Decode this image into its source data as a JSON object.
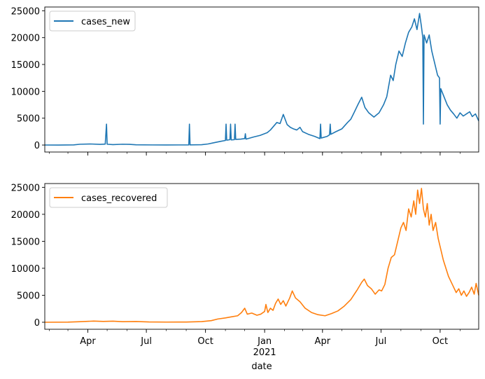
{
  "chart_data": {
    "type": "line",
    "xlabel": "date",
    "x_range": [
      "2020-01-25",
      "2021-11-30"
    ],
    "x_ticks": [
      {
        "date": "2020-04-01",
        "label": "Apr",
        "year": ""
      },
      {
        "date": "2020-07-01",
        "label": "Jul",
        "year": ""
      },
      {
        "date": "2020-10-01",
        "label": "Oct",
        "year": ""
      },
      {
        "date": "2021-01-01",
        "label": "Jan",
        "year": "2021"
      },
      {
        "date": "2021-04-01",
        "label": "Apr",
        "year": ""
      },
      {
        "date": "2021-07-01",
        "label": "Jul",
        "year": ""
      },
      {
        "date": "2021-10-01",
        "label": "Oct",
        "year": ""
      }
    ],
    "y_ticks": [
      0,
      5000,
      10000,
      15000,
      20000,
      25000
    ],
    "ylim": [
      -1300,
      25700
    ],
    "legend_position": "upper-left",
    "series": [
      {
        "name": "cases_new",
        "color": "#1f77b4",
        "points": [
          [
            "2020-01-25",
            4
          ],
          [
            "2020-02-15",
            0
          ],
          [
            "2020-03-10",
            30
          ],
          [
            "2020-03-20",
            150
          ],
          [
            "2020-04-05",
            200
          ],
          [
            "2020-04-20",
            120
          ],
          [
            "2020-04-28",
            180
          ],
          [
            "2020-04-30",
            3900
          ],
          [
            "2020-05-01",
            150
          ],
          [
            "2020-05-10",
            80
          ],
          [
            "2020-05-25",
            150
          ],
          [
            "2020-06-05",
            120
          ],
          [
            "2020-06-15",
            50
          ],
          [
            "2020-07-10",
            20
          ],
          [
            "2020-08-01",
            15
          ],
          [
            "2020-08-20",
            20
          ],
          [
            "2020-09-05",
            20
          ],
          [
            "2020-09-06",
            3900
          ],
          [
            "2020-09-07",
            30
          ],
          [
            "2020-09-25",
            60
          ],
          [
            "2020-10-05",
            200
          ],
          [
            "2020-10-15",
            450
          ],
          [
            "2020-10-25",
            700
          ],
          [
            "2020-11-01",
            850
          ],
          [
            "2020-11-02",
            3900
          ],
          [
            "2020-11-03",
            900
          ],
          [
            "2020-11-08",
            1000
          ],
          [
            "2020-11-09",
            3900
          ],
          [
            "2020-11-10",
            950
          ],
          [
            "2020-11-15",
            1000
          ],
          [
            "2020-11-16",
            3900
          ],
          [
            "2020-11-17",
            1050
          ],
          [
            "2020-11-25",
            1100
          ],
          [
            "2020-12-01",
            1200
          ],
          [
            "2020-12-02",
            2100
          ],
          [
            "2020-12-03",
            1100
          ],
          [
            "2020-12-15",
            1500
          ],
          [
            "2020-12-25",
            1800
          ],
          [
            "2021-01-05",
            2300
          ],
          [
            "2021-01-10",
            2800
          ],
          [
            "2021-01-15",
            3500
          ],
          [
            "2021-01-20",
            4200
          ],
          [
            "2021-01-25",
            4000
          ],
          [
            "2021-01-30",
            5700
          ],
          [
            "2021-02-05",
            3800
          ],
          [
            "2021-02-10",
            3300
          ],
          [
            "2021-02-15",
            3000
          ],
          [
            "2021-02-20",
            2800
          ],
          [
            "2021-02-25",
            3300
          ],
          [
            "2021-03-01",
            2500
          ],
          [
            "2021-03-10",
            2000
          ],
          [
            "2021-03-20",
            1600
          ],
          [
            "2021-03-28",
            1200
          ],
          [
            "2021-03-29",
            3900
          ],
          [
            "2021-03-30",
            1300
          ],
          [
            "2021-04-08",
            1600
          ],
          [
            "2021-04-12",
            1900
          ],
          [
            "2021-04-13",
            3900
          ],
          [
            "2021-04-14",
            2000
          ],
          [
            "2021-04-22",
            2500
          ],
          [
            "2021-05-01",
            3000
          ],
          [
            "2021-05-10",
            4200
          ],
          [
            "2021-05-15",
            4800
          ],
          [
            "2021-05-20",
            6000
          ],
          [
            "2021-05-26",
            7500
          ],
          [
            "2021-06-01",
            8900
          ],
          [
            "2021-06-06",
            7000
          ],
          [
            "2021-06-12",
            6000
          ],
          [
            "2021-06-20",
            5200
          ],
          [
            "2021-06-28",
            6000
          ],
          [
            "2021-07-05",
            7500
          ],
          [
            "2021-07-10",
            9000
          ],
          [
            "2021-07-13",
            11000
          ],
          [
            "2021-07-16",
            13000
          ],
          [
            "2021-07-20",
            12000
          ],
          [
            "2021-07-24",
            15000
          ],
          [
            "2021-07-29",
            17500
          ],
          [
            "2021-08-03",
            16500
          ],
          [
            "2021-08-08",
            19000
          ],
          [
            "2021-08-13",
            21000
          ],
          [
            "2021-08-18",
            22000
          ],
          [
            "2021-08-22",
            23500
          ],
          [
            "2021-08-26",
            21500
          ],
          [
            "2021-08-30",
            24500
          ],
          [
            "2021-09-02",
            22000
          ],
          [
            "2021-09-04",
            20000
          ],
          [
            "2021-09-05",
            3900
          ],
          [
            "2021-09-06",
            20500
          ],
          [
            "2021-09-10",
            19000
          ],
          [
            "2021-09-14",
            20500
          ],
          [
            "2021-09-18",
            17500
          ],
          [
            "2021-09-22",
            15500
          ],
          [
            "2021-09-27",
            13000
          ],
          [
            "2021-09-30",
            12500
          ],
          [
            "2021-10-01",
            3900
          ],
          [
            "2021-10-02",
            10500
          ],
          [
            "2021-10-07",
            9000
          ],
          [
            "2021-10-12",
            7500
          ],
          [
            "2021-10-17",
            6500
          ],
          [
            "2021-10-22",
            5800
          ],
          [
            "2021-10-27",
            5000
          ],
          [
            "2021-11-01",
            6000
          ],
          [
            "2021-11-06",
            5400
          ],
          [
            "2021-11-11",
            5800
          ],
          [
            "2021-11-16",
            6200
          ],
          [
            "2021-11-20",
            5300
          ],
          [
            "2021-11-25",
            5800
          ],
          [
            "2021-11-30",
            4500
          ]
        ]
      },
      {
        "name": "cases_recovered",
        "color": "#ff7f0e",
        "points": [
          [
            "2020-01-25",
            0
          ],
          [
            "2020-03-01",
            20
          ],
          [
            "2020-03-20",
            100
          ],
          [
            "2020-04-10",
            220
          ],
          [
            "2020-04-25",
            150
          ],
          [
            "2020-05-10",
            200
          ],
          [
            "2020-05-25",
            100
          ],
          [
            "2020-06-15",
            140
          ],
          [
            "2020-07-05",
            60
          ],
          [
            "2020-08-01",
            30
          ],
          [
            "2020-09-01",
            40
          ],
          [
            "2020-09-25",
            120
          ],
          [
            "2020-10-10",
            300
          ],
          [
            "2020-10-20",
            600
          ],
          [
            "2020-11-01",
            800
          ],
          [
            "2020-11-10",
            1000
          ],
          [
            "2020-11-20",
            1200
          ],
          [
            "2020-11-26",
            1800
          ],
          [
            "2020-12-01",
            2600
          ],
          [
            "2020-12-05",
            1500
          ],
          [
            "2020-12-12",
            1700
          ],
          [
            "2020-12-20",
            1300
          ],
          [
            "2020-12-26",
            1500
          ],
          [
            "2021-01-01",
            2000
          ],
          [
            "2021-01-03",
            3300
          ],
          [
            "2021-01-06",
            1800
          ],
          [
            "2021-01-10",
            2600
          ],
          [
            "2021-01-14",
            2200
          ],
          [
            "2021-01-18",
            3500
          ],
          [
            "2021-01-22",
            4300
          ],
          [
            "2021-01-26",
            3300
          ],
          [
            "2021-01-30",
            4000
          ],
          [
            "2021-02-03",
            3000
          ],
          [
            "2021-02-09",
            4500
          ],
          [
            "2021-02-13",
            5800
          ],
          [
            "2021-02-18",
            4500
          ],
          [
            "2021-02-25",
            3800
          ],
          [
            "2021-03-05",
            2600
          ],
          [
            "2021-03-15",
            1800
          ],
          [
            "2021-03-25",
            1400
          ],
          [
            "2021-04-05",
            1200
          ],
          [
            "2021-04-15",
            1600
          ],
          [
            "2021-04-25",
            2100
          ],
          [
            "2021-05-05",
            3000
          ],
          [
            "2021-05-15",
            4200
          ],
          [
            "2021-05-25",
            6000
          ],
          [
            "2021-06-01",
            7400
          ],
          [
            "2021-06-05",
            8000
          ],
          [
            "2021-06-10",
            6800
          ],
          [
            "2021-06-16",
            6200
          ],
          [
            "2021-06-22",
            5200
          ],
          [
            "2021-06-28",
            6000
          ],
          [
            "2021-07-02",
            5800
          ],
          [
            "2021-07-07",
            7000
          ],
          [
            "2021-07-12",
            10000
          ],
          [
            "2021-07-17",
            12000
          ],
          [
            "2021-07-22",
            12500
          ],
          [
            "2021-07-27",
            15000
          ],
          [
            "2021-08-01",
            17500
          ],
          [
            "2021-08-05",
            18500
          ],
          [
            "2021-08-09",
            17000
          ],
          [
            "2021-08-13",
            21000
          ],
          [
            "2021-08-17",
            19500
          ],
          [
            "2021-08-21",
            22500
          ],
          [
            "2021-08-24",
            20000
          ],
          [
            "2021-08-27",
            24500
          ],
          [
            "2021-08-30",
            22000
          ],
          [
            "2021-09-02",
            24800
          ],
          [
            "2021-09-05",
            21000
          ],
          [
            "2021-09-08",
            19500
          ],
          [
            "2021-09-11",
            22000
          ],
          [
            "2021-09-14",
            18000
          ],
          [
            "2021-09-17",
            20000
          ],
          [
            "2021-09-20",
            17000
          ],
          [
            "2021-09-24",
            18500
          ],
          [
            "2021-09-28",
            15500
          ],
          [
            "2021-10-02",
            13500
          ],
          [
            "2021-10-06",
            11500
          ],
          [
            "2021-10-10",
            10000
          ],
          [
            "2021-10-14",
            8500
          ],
          [
            "2021-10-18",
            7500
          ],
          [
            "2021-10-22",
            6500
          ],
          [
            "2021-10-26",
            5500
          ],
          [
            "2021-10-30",
            6200
          ],
          [
            "2021-11-03",
            5000
          ],
          [
            "2021-11-07",
            5800
          ],
          [
            "2021-11-11",
            4800
          ],
          [
            "2021-11-15",
            5500
          ],
          [
            "2021-11-19",
            6500
          ],
          [
            "2021-11-23",
            5200
          ],
          [
            "2021-11-26",
            7200
          ],
          [
            "2021-11-30",
            5000
          ]
        ]
      }
    ]
  }
}
